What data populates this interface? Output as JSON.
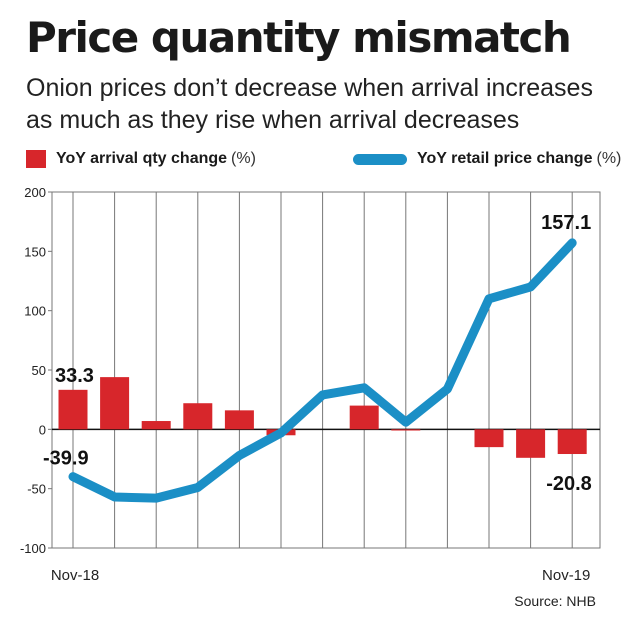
{
  "title": "Price quantity mismatch",
  "subtitle": "Onion prices don’t decrease when arrival increases as much as they rise when arrival decreases",
  "source": "Source: NHB",
  "colors": {
    "bar": "#d7262b",
    "line": "#1b8fc6",
    "grid": "#777777",
    "axis": "#111111"
  },
  "chart_data": {
    "type": "bar",
    "title": "Price quantity mismatch",
    "subtitle": "Onion prices don’t decrease when arrival increases as much as they rise when arrival decreases",
    "xlabel": "",
    "ylabel": "",
    "x_tick_labels": [
      "Nov-18",
      "Nov-19"
    ],
    "ylim": [
      -100,
      200
    ],
    "yticks": [
      "200",
      "150",
      "100",
      "50",
      "0",
      "-50",
      "-100"
    ],
    "grid": "vertical",
    "legend_position": "top",
    "series": [
      {
        "name": "YoY arrival qty change",
        "unit": "(%)",
        "type": "bar",
        "values": [
          33.3,
          44,
          7,
          22,
          16,
          -5,
          null,
          20,
          -1,
          null,
          -15,
          -24,
          -20.8
        ]
      },
      {
        "name": "YoY retail price change",
        "unit": "(%)",
        "type": "line",
        "values": [
          -39.9,
          -57,
          -58,
          -49,
          -22,
          -3,
          29,
          35,
          6,
          34,
          110,
          120,
          157.1
        ]
      }
    ],
    "annotations": [
      "33.3",
      "-39.9",
      "157.1",
      "-20.8"
    ]
  }
}
